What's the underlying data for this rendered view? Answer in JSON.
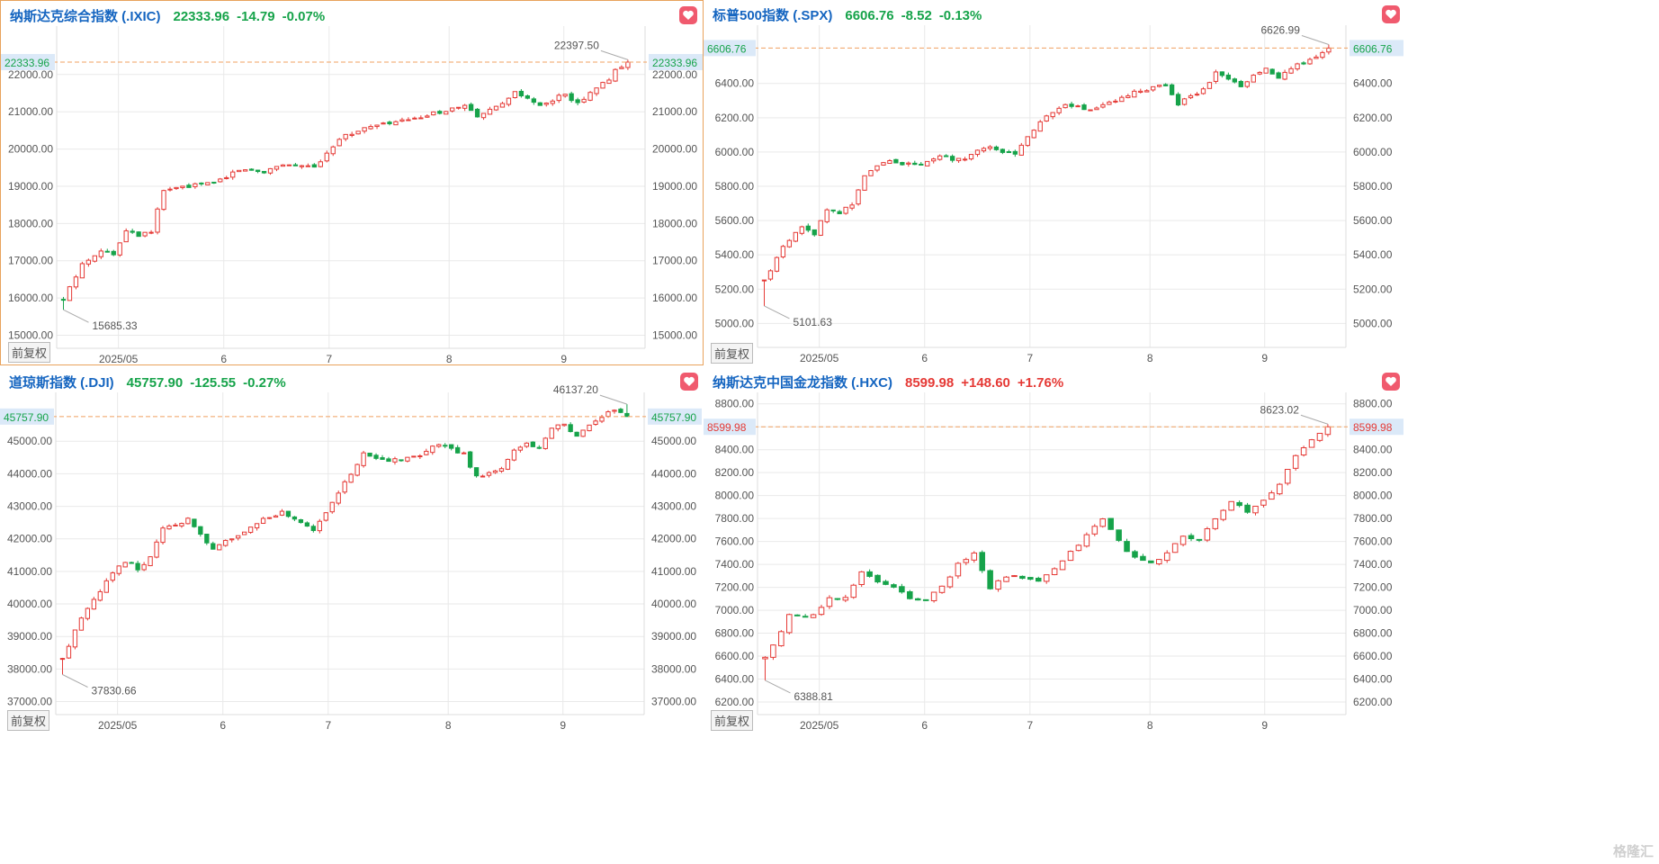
{
  "panels": [
    {
      "name": "纳斯达克综合指数 (.IXIC)",
      "price": "22333.96",
      "change": "-14.79",
      "pct": "-0.07%",
      "direction": "down",
      "price_label": "22333.96",
      "adj_label": "前复权",
      "active": true
    },
    {
      "name": "标普500指数 (.SPX)",
      "price": "6606.76",
      "change": "-8.52",
      "pct": "-0.13%",
      "direction": "down",
      "price_label": "6606.76",
      "adj_label": "前复权",
      "active": false
    },
    {
      "name": "道琼斯指数 (.DJI)",
      "price": "45757.90",
      "change": "-125.55",
      "pct": "-0.27%",
      "direction": "down",
      "price_label": "45757.90",
      "adj_label": "前复权",
      "active": false
    },
    {
      "name": "纳斯达克中国金龙指数 (.HXC)",
      "price": "8599.98",
      "change": "+148.60",
      "pct": "+1.76%",
      "direction": "up",
      "price_label": "8599.98",
      "adj_label": "前复权",
      "active": false
    }
  ],
  "watermark": "格隆汇",
  "colors": {
    "up": "#e53935",
    "down": "#16a34a",
    "price_line": "#f0a060",
    "grid": "#e9e9e9",
    "axis_text": "#555555",
    "title": "#1565c0",
    "price_label_bg": "#dbe9f8",
    "active_border": "#e8a25c"
  },
  "chart_data": [
    {
      "type": "candlestick",
      "title": "纳斯达克综合指数 (.IXIC)",
      "x_ticks": [
        "2025/05",
        "6",
        "7",
        "8",
        "9"
      ],
      "ylim": [
        14650,
        23300
      ],
      "y_ticks": [
        "15000.00",
        "16000.00",
        "17000.00",
        "18000.00",
        "19000.00",
        "20000.00",
        "21000.00",
        "22000.00"
      ],
      "current_price": 22333.96,
      "high_annotation": "22397.50",
      "low_annotation": "15685.33",
      "high": 22397.5,
      "low": 15685.33,
      "waypoints": [
        [
          0,
          15950
        ],
        [
          3,
          16900
        ],
        [
          6,
          17300
        ],
        [
          8,
          17150
        ],
        [
          10,
          17850
        ],
        [
          12,
          17700
        ],
        [
          14,
          17800
        ],
        [
          16,
          18900
        ],
        [
          20,
          19000
        ],
        [
          24,
          19100
        ],
        [
          28,
          19450
        ],
        [
          32,
          19400
        ],
        [
          35,
          19600
        ],
        [
          40,
          19500
        ],
        [
          44,
          20300
        ],
        [
          48,
          20550
        ],
        [
          52,
          20700
        ],
        [
          56,
          20800
        ],
        [
          60,
          21000
        ],
        [
          64,
          21150
        ],
        [
          66,
          20850
        ],
        [
          70,
          21200
        ],
        [
          72,
          21500
        ],
        [
          74,
          21350
        ],
        [
          76,
          21150
        ],
        [
          78,
          21300
        ],
        [
          80,
          21500
        ],
        [
          82,
          21200
        ],
        [
          84,
          21550
        ],
        [
          87,
          21850
        ],
        [
          88,
          22100
        ],
        [
          90,
          22310
        ]
      ]
    },
    {
      "type": "candlestick",
      "title": "标普500指数 (.SPX)",
      "x_ticks": [
        "2025/05",
        "6",
        "7",
        "8",
        "9"
      ],
      "ylim": [
        4860,
        6740
      ],
      "y_ticks": [
        "5000.00",
        "5200.00",
        "5400.00",
        "5600.00",
        "5800.00",
        "6000.00",
        "6200.00",
        "6400.00"
      ],
      "current_price": 6606.76,
      "high_annotation": "6626.99",
      "low_annotation": "5101.63",
      "high": 6626.99,
      "low": 5101.63,
      "waypoints": [
        [
          0,
          5250
        ],
        [
          3,
          5450
        ],
        [
          6,
          5560
        ],
        [
          8,
          5520
        ],
        [
          10,
          5660
        ],
        [
          12,
          5650
        ],
        [
          14,
          5690
        ],
        [
          16,
          5870
        ],
        [
          20,
          5950
        ],
        [
          24,
          5920
        ],
        [
          28,
          5970
        ],
        [
          32,
          5950
        ],
        [
          35,
          6030
        ],
        [
          40,
          5990
        ],
        [
          44,
          6180
        ],
        [
          48,
          6270
        ],
        [
          52,
          6250
        ],
        [
          56,
          6300
        ],
        [
          60,
          6360
        ],
        [
          64,
          6390
        ],
        [
          66,
          6280
        ],
        [
          70,
          6370
        ],
        [
          72,
          6460
        ],
        [
          74,
          6430
        ],
        [
          76,
          6390
        ],
        [
          78,
          6450
        ],
        [
          80,
          6480
        ],
        [
          82,
          6430
        ],
        [
          84,
          6490
        ],
        [
          87,
          6540
        ],
        [
          88,
          6560
        ],
        [
          90,
          6600
        ]
      ]
    },
    {
      "type": "candlestick",
      "title": "道琼斯指数 (.DJI)",
      "x_ticks": [
        "2025/05",
        "6",
        "7",
        "8",
        "9"
      ],
      "ylim": [
        36600,
        46500
      ],
      "y_ticks": [
        "37000.00",
        "38000.00",
        "39000.00",
        "40000.00",
        "41000.00",
        "42000.00",
        "43000.00",
        "44000.00",
        "45000.00"
      ],
      "current_price": 45757.9,
      "high_annotation": "46137.20",
      "low_annotation": "37830.66",
      "high": 46137.2,
      "low": 37830.66,
      "waypoints": [
        [
          0,
          38300
        ],
        [
          3,
          39600
        ],
        [
          6,
          40400
        ],
        [
          8,
          41000
        ],
        [
          10,
          41300
        ],
        [
          12,
          41100
        ],
        [
          14,
          41400
        ],
        [
          16,
          42300
        ],
        [
          20,
          42600
        ],
        [
          24,
          41700
        ],
        [
          28,
          42100
        ],
        [
          32,
          42600
        ],
        [
          35,
          42800
        ],
        [
          40,
          42300
        ],
        [
          44,
          43400
        ],
        [
          48,
          44600
        ],
        [
          52,
          44400
        ],
        [
          56,
          44500
        ],
        [
          60,
          44900
        ],
        [
          64,
          44600
        ],
        [
          66,
          43900
        ],
        [
          70,
          44200
        ],
        [
          72,
          44700
        ],
        [
          74,
          44900
        ],
        [
          76,
          44800
        ],
        [
          78,
          45400
        ],
        [
          80,
          45500
        ],
        [
          82,
          45200
        ],
        [
          84,
          45500
        ],
        [
          87,
          45900
        ],
        [
          88,
          45950
        ],
        [
          90,
          45780
        ]
      ]
    },
    {
      "type": "candlestick",
      "title": "纳斯达克中国金龙指数 (.HXC)",
      "x_ticks": [
        "2025/05",
        "6",
        "7",
        "8",
        "9"
      ],
      "ylim": [
        6090,
        8900
      ],
      "y_ticks": [
        "6200.00",
        "6400.00",
        "6600.00",
        "6800.00",
        "7000.00",
        "7200.00",
        "7400.00",
        "7600.00",
        "7800.00",
        "8000.00",
        "8200.00",
        "8400.00",
        "8600.00",
        "8800.00"
      ],
      "current_price": 8599.98,
      "high_annotation": "8623.02",
      "low_annotation": "6388.81",
      "high": 8623.02,
      "low": 6388.81,
      "waypoints": [
        [
          0,
          6580
        ],
        [
          3,
          6950
        ],
        [
          6,
          6950
        ],
        [
          8,
          7100
        ],
        [
          10,
          7100
        ],
        [
          12,
          7350
        ],
        [
          14,
          7250
        ],
        [
          16,
          7200
        ],
        [
          18,
          7100
        ],
        [
          20,
          7100
        ],
        [
          22,
          7200
        ],
        [
          24,
          7400
        ],
        [
          26,
          7500
        ],
        [
          28,
          7200
        ],
        [
          30,
          7300
        ],
        [
          34,
          7250
        ],
        [
          36,
          7350
        ],
        [
          38,
          7500
        ],
        [
          40,
          7650
        ],
        [
          42,
          7800
        ],
        [
          44,
          7600
        ],
        [
          46,
          7450
        ],
        [
          48,
          7400
        ],
        [
          50,
          7500
        ],
        [
          52,
          7650
        ],
        [
          54,
          7600
        ],
        [
          56,
          7800
        ],
        [
          58,
          7950
        ],
        [
          60,
          7850
        ],
        [
          62,
          7950
        ],
        [
          64,
          8100
        ],
        [
          66,
          8350
        ],
        [
          68,
          8500
        ],
        [
          70,
          8599
        ]
      ]
    }
  ]
}
